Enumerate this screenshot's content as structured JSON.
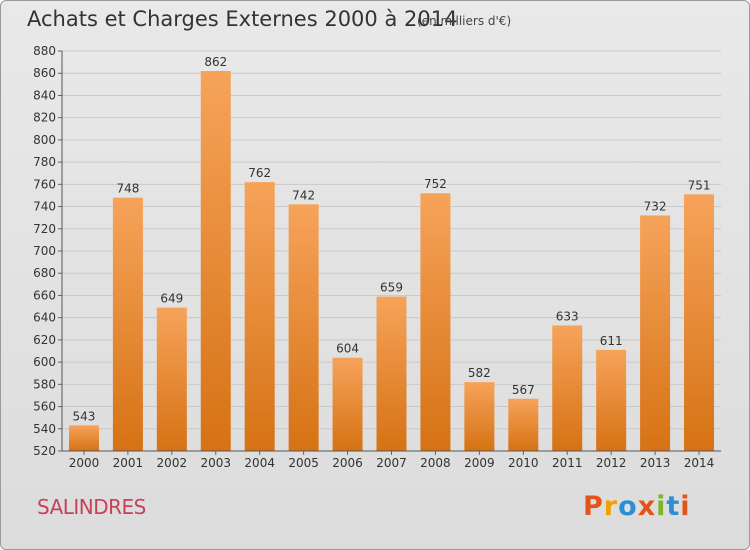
{
  "header": {
    "title": "Achats et Charges Externes 2000 à 2014",
    "subtitle": "(en milliers d'€)"
  },
  "footer": {
    "city": "SALINDRES",
    "logo": {
      "text": "Proxiti"
    }
  },
  "colors": {
    "bar_top": "#f6a35a",
    "bar_bottom": "#d67214",
    "logo": [
      "#e4531b",
      "#f0a000",
      "#2a8fd4",
      "#e4531b",
      "#7ab52a",
      "#2a8fd4",
      "#e4531b"
    ]
  },
  "chart_data": {
    "type": "bar",
    "categories": [
      "2000",
      "2001",
      "2002",
      "2003",
      "2004",
      "2005",
      "2006",
      "2007",
      "2008",
      "2009",
      "2010",
      "2011",
      "2012",
      "2013",
      "2014"
    ],
    "values": [
      543,
      748,
      649,
      862,
      762,
      742,
      604,
      659,
      752,
      582,
      567,
      633,
      611,
      732,
      751
    ],
    "ylim": [
      520,
      880
    ],
    "ytick_step": 20,
    "grid": true,
    "data_labels": true
  }
}
